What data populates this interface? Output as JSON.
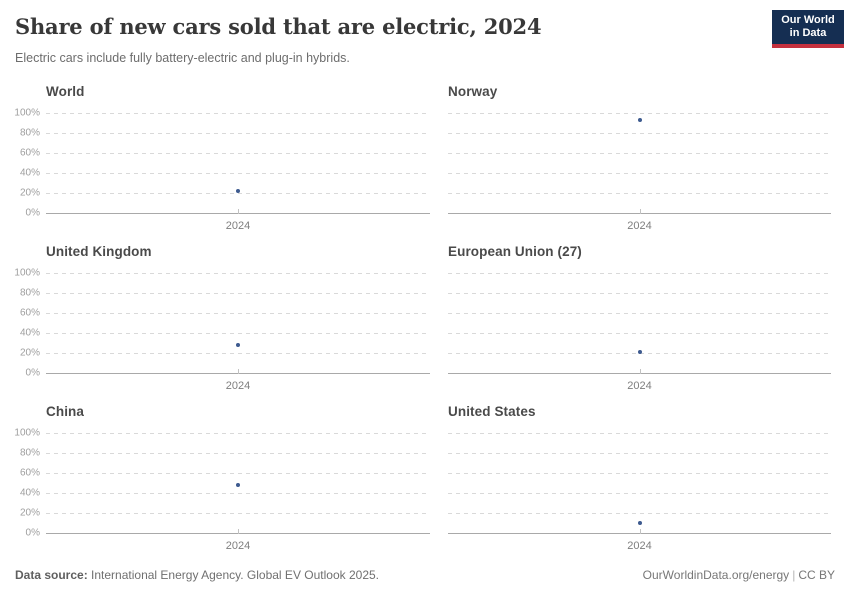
{
  "header": {
    "title": "Share of new cars sold that are electric, 2024",
    "subtitle": "Electric cars include fully battery-electric and plug-in hybrids.",
    "logo": {
      "line1": "Our World",
      "line2": "in Data"
    }
  },
  "chart_data": {
    "type": "scatter",
    "layout": "facets-2col-3row",
    "x_tick_label": "2024",
    "x": [
      2024
    ],
    "ylim": [
      0,
      100
    ],
    "y_tick_labels": [
      "100%",
      "80%",
      "60%",
      "40%",
      "20%",
      "0%"
    ],
    "y_ticks": [
      100,
      80,
      60,
      40,
      20,
      0
    ],
    "grid": true,
    "point_color": "#3d5a8f",
    "facets": [
      {
        "name": "World",
        "year": 2024,
        "value_percent": 22
      },
      {
        "name": "Norway",
        "year": 2024,
        "value_percent": 93
      },
      {
        "name": "United Kingdom",
        "year": 2024,
        "value_percent": 28
      },
      {
        "name": "European Union (27)",
        "year": 2024,
        "value_percent": 21
      },
      {
        "name": "China",
        "year": 2024,
        "value_percent": 48
      },
      {
        "name": "United States",
        "year": 2024,
        "value_percent": 10
      }
    ]
  },
  "footer": {
    "source_label": "Data source:",
    "source_text": " International Energy Agency. Global EV Outlook 2025.",
    "url": "OurWorldinData.org/energy",
    "separator": "|",
    "license": "CC BY"
  },
  "colors": {
    "title": "#383838",
    "subtitle": "#6d6d6d",
    "grid": "#d9d9d9",
    "axis": "#a9a9a9",
    "tick_labels": "#9e9e9e",
    "point": "#3d5a8f",
    "logo_background": "#152e52",
    "logo_accent": "#c5303e"
  }
}
